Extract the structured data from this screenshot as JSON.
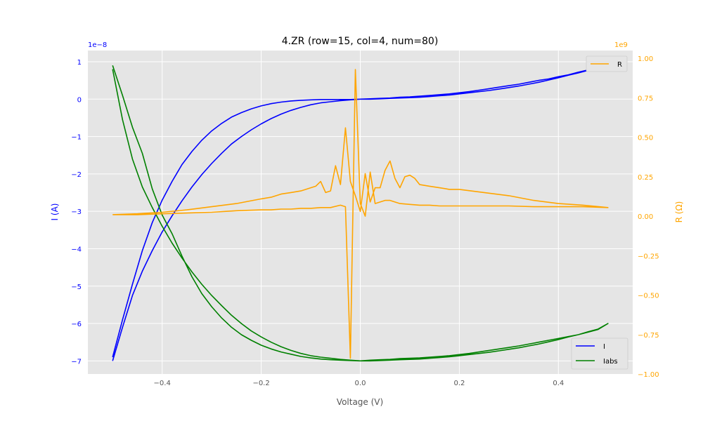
{
  "chart_data": {
    "type": "line",
    "title": "4.ZR (row=15, col=4, num=80)",
    "xlabel": "Voltage (V)",
    "ylabel_left": "I (A)",
    "ylabel_right": "R (Ω)",
    "left_offset_text": "1e−8",
    "right_offset_text": "1e9",
    "xlim": [
      -0.55,
      0.55
    ],
    "ylim_left": [
      -7.35,
      1.3
    ],
    "ylim_right": [
      -1.0,
      1.05
    ],
    "x_ticks": [
      -0.4,
      -0.2,
      0.0,
      0.2,
      0.4
    ],
    "x_tick_labels": [
      "−0.4",
      "−0.2",
      "0.0",
      "0.2",
      "0.4"
    ],
    "left_ticks": [
      1,
      0,
      -1,
      -2,
      -3,
      -4,
      -5,
      -6,
      -7
    ],
    "left_tick_labels": [
      "1",
      "0",
      "−1",
      "−2",
      "−3",
      "−4",
      "−5",
      "−6",
      "−7"
    ],
    "right_ticks": [
      1.0,
      0.75,
      0.5,
      0.25,
      0.0,
      -0.25,
      -0.5,
      -0.75,
      -1.0
    ],
    "right_tick_labels": [
      "1.00",
      "0.75",
      "0.50",
      "0.25",
      "0.00",
      "−0.25",
      "−0.50",
      "−0.75",
      "−1.00"
    ],
    "grid": true,
    "legend_left": {
      "placement": "bottom-right",
      "entries": [
        "I",
        "Iabs"
      ]
    },
    "legend_right": {
      "placement": "top-right",
      "entries": [
        "R"
      ]
    },
    "colors": {
      "I": "#0000ff",
      "Iabs": "#008000",
      "R": "#ffa500",
      "plot_bg": "#e5e5e5",
      "grid": "#ffffff",
      "left_axis": "#0000ff",
      "right_axis": "#ffa500"
    },
    "series": [
      {
        "name": "I",
        "axis": "left",
        "x": [
          -0.5,
          -0.48,
          -0.46,
          -0.44,
          -0.42,
          -0.4,
          -0.38,
          -0.36,
          -0.34,
          -0.32,
          -0.3,
          -0.28,
          -0.26,
          -0.24,
          -0.22,
          -0.2,
          -0.18,
          -0.16,
          -0.14,
          -0.12,
          -0.1,
          -0.08,
          -0.06,
          -0.04,
          -0.02,
          0.0,
          0.02,
          0.04,
          0.06,
          0.08,
          0.1,
          0.12,
          0.14,
          0.16,
          0.18,
          0.2,
          0.22,
          0.24,
          0.26,
          0.28,
          0.3,
          0.32,
          0.34,
          0.36,
          0.38,
          0.4,
          0.42,
          0.44,
          0.46,
          0.48,
          0.5,
          0.48,
          0.46,
          0.44,
          0.42,
          0.4,
          0.38,
          0.36,
          0.34,
          0.32,
          0.3,
          0.28,
          0.26,
          0.24,
          0.22,
          0.2,
          0.18,
          0.16,
          0.14,
          0.12,
          0.1,
          0.08,
          0.06,
          0.04,
          0.02,
          0.0,
          -0.02,
          -0.04,
          -0.06,
          -0.08,
          -0.1,
          -0.12,
          -0.14,
          -0.16,
          -0.18,
          -0.2,
          -0.22,
          -0.24,
          -0.26,
          -0.28,
          -0.3,
          -0.32,
          -0.34,
          -0.36,
          -0.38,
          -0.4,
          -0.42,
          -0.44,
          -0.46,
          -0.48,
          -0.5
        ],
        "values": [
          -6.9,
          -5.9,
          -4.95,
          -4.05,
          -3.3,
          -2.7,
          -2.2,
          -1.75,
          -1.4,
          -1.1,
          -0.85,
          -0.65,
          -0.48,
          -0.36,
          -0.26,
          -0.18,
          -0.12,
          -0.08,
          -0.05,
          -0.03,
          -0.02,
          -0.01,
          -0.01,
          -0.01,
          -0.01,
          0.0,
          0.0,
          0.01,
          0.02,
          0.03,
          0.04,
          0.05,
          0.07,
          0.09,
          0.11,
          0.14,
          0.17,
          0.2,
          0.23,
          0.27,
          0.31,
          0.35,
          0.4,
          0.45,
          0.51,
          0.57,
          0.64,
          0.7,
          0.77,
          0.84,
          0.92,
          0.85,
          0.78,
          0.72,
          0.65,
          0.6,
          0.54,
          0.5,
          0.45,
          0.4,
          0.36,
          0.32,
          0.28,
          0.24,
          0.2,
          0.17,
          0.14,
          0.12,
          0.1,
          0.08,
          0.06,
          0.05,
          0.03,
          0.02,
          0.01,
          0.0,
          -0.02,
          -0.04,
          -0.07,
          -0.1,
          -0.15,
          -0.22,
          -0.3,
          -0.4,
          -0.52,
          -0.66,
          -0.82,
          -1.0,
          -1.2,
          -1.45,
          -1.72,
          -2.02,
          -2.35,
          -2.72,
          -3.12,
          -3.55,
          -4.05,
          -4.6,
          -5.25,
          -6.1,
          -7.0
        ]
      },
      {
        "name": "Iabs",
        "axis": "left",
        "x": [
          -0.5,
          -0.48,
          -0.46,
          -0.44,
          -0.42,
          -0.4,
          -0.38,
          -0.36,
          -0.34,
          -0.32,
          -0.3,
          -0.28,
          -0.26,
          -0.24,
          -0.22,
          -0.2,
          -0.18,
          -0.16,
          -0.14,
          -0.12,
          -0.1,
          -0.08,
          -0.06,
          -0.04,
          -0.02,
          0.0,
          0.02,
          0.04,
          0.06,
          0.08,
          0.1,
          0.12,
          0.14,
          0.16,
          0.18,
          0.2,
          0.22,
          0.24,
          0.26,
          0.28,
          0.3,
          0.32,
          0.34,
          0.36,
          0.38,
          0.4,
          0.42,
          0.44,
          0.46,
          0.48,
          0.5,
          0.48,
          0.46,
          0.44,
          0.42,
          0.4,
          0.38,
          0.36,
          0.34,
          0.32,
          0.3,
          0.28,
          0.26,
          0.24,
          0.22,
          0.2,
          0.18,
          0.16,
          0.14,
          0.12,
          0.1,
          0.08,
          0.06,
          0.04,
          0.02,
          0.0,
          -0.02,
          -0.04,
          -0.06,
          -0.08,
          -0.1,
          -0.12,
          -0.14,
          -0.16,
          -0.18,
          -0.2,
          -0.22,
          -0.24,
          -0.26,
          -0.28,
          -0.3,
          -0.32,
          -0.34,
          -0.36,
          -0.38,
          -0.4,
          -0.42,
          -0.44,
          -0.46,
          -0.48,
          -0.5
        ],
        "values": [
          0.9,
          0.1,
          -0.75,
          -1.45,
          -2.4,
          -3.1,
          -3.6,
          -4.2,
          -4.75,
          -5.2,
          -5.55,
          -5.85,
          -6.1,
          -6.3,
          -6.45,
          -6.58,
          -6.68,
          -6.76,
          -6.82,
          -6.88,
          -6.92,
          -6.95,
          -6.97,
          -6.98,
          -6.99,
          -7.0,
          -7.0,
          -6.99,
          -6.98,
          -6.97,
          -6.96,
          -6.95,
          -6.93,
          -6.91,
          -6.89,
          -6.86,
          -6.83,
          -6.8,
          -6.77,
          -6.73,
          -6.69,
          -6.65,
          -6.6,
          -6.55,
          -6.49,
          -6.43,
          -6.36,
          -6.3,
          -6.23,
          -6.16,
          -6.0,
          -6.15,
          -6.22,
          -6.3,
          -6.35,
          -6.4,
          -6.45,
          -6.5,
          -6.55,
          -6.6,
          -6.64,
          -6.68,
          -6.72,
          -6.76,
          -6.8,
          -6.83,
          -6.86,
          -6.88,
          -6.9,
          -6.92,
          -6.93,
          -6.94,
          -6.96,
          -6.97,
          -6.98,
          -7.0,
          -6.98,
          -6.96,
          -6.93,
          -6.9,
          -6.86,
          -6.8,
          -6.72,
          -6.62,
          -6.5,
          -6.36,
          -6.2,
          -6.0,
          -5.78,
          -5.52,
          -5.25,
          -4.95,
          -4.62,
          -4.25,
          -3.85,
          -3.4,
          -2.9,
          -2.35,
          -1.6,
          -0.55,
          0.8
        ]
      },
      {
        "name": "R",
        "axis": "right",
        "x": [
          -0.5,
          -0.45,
          -0.4,
          -0.35,
          -0.3,
          -0.25,
          -0.2,
          -0.18,
          -0.16,
          -0.14,
          -0.12,
          -0.1,
          -0.08,
          -0.06,
          -0.04,
          -0.03,
          -0.02,
          -0.01,
          0.0,
          0.01,
          0.02,
          0.03,
          0.04,
          0.05,
          0.06,
          0.07,
          0.08,
          0.1,
          0.12,
          0.14,
          0.16,
          0.18,
          0.2,
          0.25,
          0.3,
          0.35,
          0.4,
          0.45,
          0.5,
          0.45,
          0.4,
          0.35,
          0.3,
          0.25,
          0.2,
          0.18,
          0.16,
          0.14,
          0.12,
          0.11,
          0.1,
          0.09,
          0.08,
          0.07,
          0.06,
          0.05,
          0.04,
          0.03,
          0.02,
          0.01,
          0.0,
          -0.01,
          -0.02,
          -0.03,
          -0.04,
          -0.05,
          -0.06,
          -0.07,
          -0.08,
          -0.09,
          -0.1,
          -0.12,
          -0.14,
          -0.16,
          -0.18,
          -0.2,
          -0.25,
          -0.3,
          -0.35,
          -0.4,
          -0.45,
          -0.5
        ],
        "values": [
          0.01,
          0.01,
          0.015,
          0.02,
          0.025,
          0.035,
          0.04,
          0.04,
          0.045,
          0.045,
          0.05,
          0.05,
          0.055,
          0.055,
          0.07,
          0.06,
          -0.9,
          0.93,
          0.08,
          0.0,
          0.28,
          0.08,
          0.09,
          0.1,
          0.1,
          0.09,
          0.08,
          0.075,
          0.07,
          0.07,
          0.065,
          0.065,
          0.065,
          0.065,
          0.065,
          0.06,
          0.06,
          0.06,
          0.055,
          0.07,
          0.08,
          0.1,
          0.13,
          0.15,
          0.17,
          0.17,
          0.18,
          0.19,
          0.2,
          0.24,
          0.26,
          0.25,
          0.18,
          0.24,
          0.35,
          0.29,
          0.18,
          0.18,
          0.09,
          0.27,
          0.03,
          0.13,
          0.22,
          0.56,
          0.2,
          0.32,
          0.16,
          0.15,
          0.22,
          0.19,
          0.18,
          0.16,
          0.15,
          0.14,
          0.12,
          0.11,
          0.08,
          0.06,
          0.04,
          0.025,
          0.015,
          0.01
        ]
      }
    ]
  }
}
